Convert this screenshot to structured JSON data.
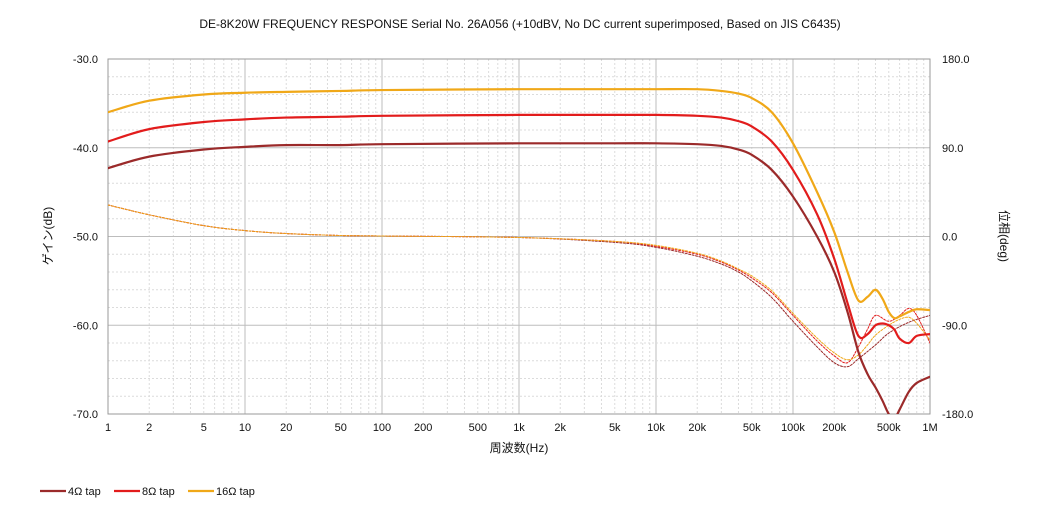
{
  "chart_data": {
    "type": "line",
    "title": "DE-8K20W FREQUENCY RESPONSE Serial No. 26A056 (+10dBV,  No DC current superimposed,  Based on JIS C6435)",
    "xlabel": "周波数(Hz)",
    "ylabel_left": "ゲイン(dB)",
    "ylabel_right": "位相(deg)",
    "x_scale": "log",
    "xlim": [
      1,
      1000000
    ],
    "ylim_left": [
      -70,
      -30
    ],
    "ylim_right": [
      -180,
      180
    ],
    "grid": true,
    "legend_position": "bottom-left",
    "x_ticks": [
      {
        "v": 1,
        "label": "1"
      },
      {
        "v": 2,
        "label": "2"
      },
      {
        "v": 5,
        "label": "5"
      },
      {
        "v": 10,
        "label": "10"
      },
      {
        "v": 20,
        "label": "20"
      },
      {
        "v": 50,
        "label": "50"
      },
      {
        "v": 100,
        "label": "100"
      },
      {
        "v": 200,
        "label": "200"
      },
      {
        "v": 500,
        "label": "500"
      },
      {
        "v": 1000,
        "label": "1k"
      },
      {
        "v": 2000,
        "label": "2k"
      },
      {
        "v": 5000,
        "label": "5k"
      },
      {
        "v": 10000,
        "label": "10k"
      },
      {
        "v": 20000,
        "label": "20k"
      },
      {
        "v": 50000,
        "label": "50k"
      },
      {
        "v": 100000,
        "label": "100k"
      },
      {
        "v": 200000,
        "label": "200k"
      },
      {
        "v": 500000,
        "label": "500k"
      },
      {
        "v": 1000000,
        "label": "1M"
      }
    ],
    "y_ticks_left": [
      {
        "v": -30,
        "label": "-30.0"
      },
      {
        "v": -40,
        "label": "-40.0"
      },
      {
        "v": -50,
        "label": "-50.0"
      },
      {
        "v": -60,
        "label": "-60.0"
      },
      {
        "v": -70,
        "label": "-70.0"
      }
    ],
    "y_ticks_right": [
      {
        "v": 180,
        "label": "180.0"
      },
      {
        "v": 90,
        "label": "90.0"
      },
      {
        "v": 0,
        "label": "0.0"
      },
      {
        "v": -90,
        "label": "-90.0"
      },
      {
        "v": -180,
        "label": "-180.0"
      }
    ],
    "series": [
      {
        "name": "4Ω tap",
        "color": "#9b2a2a",
        "axis": "left",
        "x": [
          1,
          2,
          5,
          10,
          20,
          50,
          100,
          1000,
          5000,
          10000,
          20000,
          30000,
          40000,
          50000,
          70000,
          100000,
          150000,
          200000,
          250000,
          300000,
          350000,
          400000,
          450000,
          500000,
          550000,
          600000,
          700000,
          800000,
          1000000
        ],
        "y": [
          -42.3,
          -41.0,
          -40.2,
          -39.9,
          -39.7,
          -39.7,
          -39.6,
          -39.5,
          -39.5,
          -39.5,
          -39.6,
          -39.8,
          -40.2,
          -40.8,
          -42.5,
          -45.5,
          -50.0,
          -54.0,
          -58.5,
          -63.0,
          -65.5,
          -67.0,
          -68.5,
          -70.0,
          -70.5,
          -69.5,
          -67.5,
          -66.5,
          -65.8
        ]
      },
      {
        "name": "8Ω tap",
        "color": "#e21c1c",
        "axis": "left",
        "x": [
          1,
          2,
          5,
          10,
          20,
          50,
          100,
          1000,
          5000,
          10000,
          20000,
          30000,
          40000,
          50000,
          70000,
          100000,
          150000,
          200000,
          250000,
          300000,
          350000,
          400000,
          450000,
          500000,
          550000,
          600000,
          700000,
          800000,
          1000000
        ],
        "y": [
          -39.3,
          -37.9,
          -37.1,
          -36.8,
          -36.6,
          -36.5,
          -36.4,
          -36.3,
          -36.3,
          -36.3,
          -36.4,
          -36.6,
          -37.0,
          -37.6,
          -39.3,
          -42.5,
          -47.5,
          -52.5,
          -57.5,
          -61.2,
          -61.0,
          -60.0,
          -59.8,
          -60.0,
          -60.5,
          -61.5,
          -62.0,
          -61.2,
          -61.0
        ]
      },
      {
        "name": "16Ω tap",
        "color": "#f0a818",
        "axis": "left",
        "x": [
          1,
          2,
          5,
          10,
          20,
          50,
          100,
          1000,
          5000,
          10000,
          20000,
          30000,
          40000,
          50000,
          70000,
          100000,
          150000,
          200000,
          250000,
          300000,
          350000,
          400000,
          450000,
          500000,
          550000,
          600000,
          700000,
          800000,
          1000000
        ],
        "y": [
          -36.0,
          -34.7,
          -34.0,
          -33.8,
          -33.7,
          -33.6,
          -33.5,
          -33.4,
          -33.4,
          -33.4,
          -33.4,
          -33.6,
          -33.9,
          -34.4,
          -36.0,
          -39.5,
          -45.0,
          -49.5,
          -54.0,
          -57.2,
          -56.8,
          -56.0,
          -57.0,
          -58.5,
          -59.2,
          -59.0,
          -58.5,
          -58.2,
          -58.3
        ]
      },
      {
        "name": "4Ω tap",
        "color": "#9b2a2a",
        "axis": "right",
        "dashed": true,
        "x": [
          1,
          2,
          5,
          10,
          20,
          50,
          100,
          1000,
          5000,
          10000,
          20000,
          30000,
          40000,
          50000,
          70000,
          100000,
          150000,
          200000,
          250000,
          300000,
          400000,
          500000,
          700000,
          1000000
        ],
        "y": [
          32,
          22,
          11,
          6,
          3,
          1,
          0.5,
          -1,
          -6,
          -11,
          -20,
          -28,
          -36,
          -45,
          -62,
          -86,
          -112,
          -128,
          -132,
          -124,
          -110,
          -98,
          -87,
          -80
        ]
      },
      {
        "name": "8Ω tap",
        "color": "#e21c1c",
        "axis": "right",
        "dashed": true,
        "x": [
          1,
          2,
          5,
          10,
          20,
          50,
          100,
          1000,
          5000,
          10000,
          20000,
          30000,
          40000,
          50000,
          70000,
          100000,
          150000,
          200000,
          250000,
          300000,
          350000,
          400000,
          500000,
          600000,
          700000,
          800000,
          1000000
        ],
        "y": [
          32,
          22,
          11,
          6,
          3,
          1,
          0.5,
          -1,
          -5,
          -10,
          -18,
          -26,
          -34,
          -42,
          -57,
          -80,
          -106,
          -121,
          -128,
          -112,
          -94,
          -80,
          -86,
          -80,
          -73,
          -80,
          -108
        ]
      },
      {
        "name": "16Ω tap",
        "color": "#f0a818",
        "axis": "right",
        "dashed": true,
        "x": [
          1,
          2,
          5,
          10,
          20,
          50,
          100,
          1000,
          5000,
          10000,
          20000,
          30000,
          40000,
          50000,
          70000,
          100000,
          150000,
          200000,
          250000,
          300000,
          350000,
          400000,
          500000,
          600000,
          700000,
          800000,
          1000000
        ],
        "y": [
          32,
          22,
          11,
          6,
          3,
          1,
          0.5,
          -1,
          -5,
          -9,
          -17,
          -25,
          -33,
          -40,
          -55,
          -78,
          -103,
          -118,
          -125,
          -120,
          -110,
          -100,
          -90,
          -84,
          -82,
          -88,
          -105
        ]
      }
    ],
    "legend": [
      {
        "label": "4Ω tap",
        "color": "#9b2a2a"
      },
      {
        "label": "8Ω tap",
        "color": "#e21c1c"
      },
      {
        "label": "16Ω tap",
        "color": "#f0a818"
      }
    ]
  }
}
